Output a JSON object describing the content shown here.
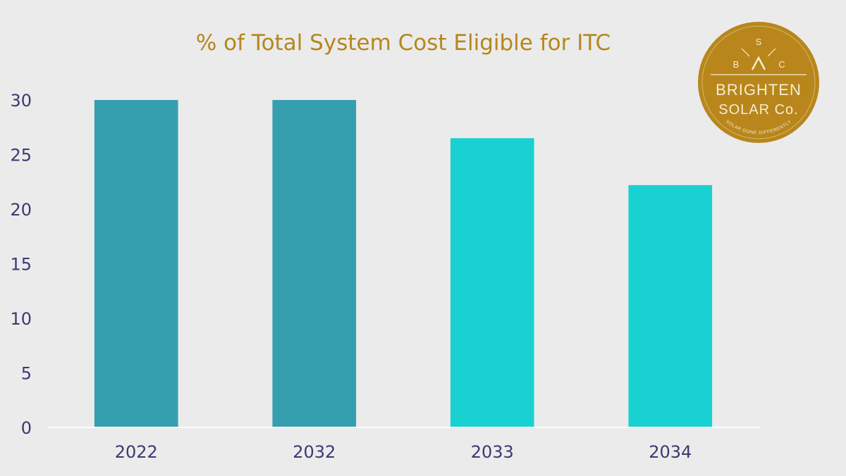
{
  "chart_data": {
    "type": "bar",
    "title": "% of Total System Cost Eligible for ITC",
    "categories": [
      "2022",
      "2032",
      "2033",
      "2034"
    ],
    "values": [
      30,
      30,
      26.5,
      22.2
    ],
    "xlabel": "",
    "ylabel": "",
    "ylim": [
      0,
      30
    ],
    "yticks": [
      0,
      5,
      10,
      15,
      20,
      25,
      30
    ],
    "grid": false,
    "legend": "none",
    "colors": [
      "#369faf",
      "#369faf",
      "#19d1d1",
      "#19d1d1"
    ]
  },
  "logo": {
    "letter_top": "S",
    "letter_left": "B",
    "letter_right": "C",
    "line1": "BRIGHTEN",
    "line2": "SOLAR Co.",
    "tagline": "SOLAR DONE DIFFERENTLY",
    "color": "#b8861b"
  },
  "colors": {
    "background": "#ebebeb",
    "title": "#b7861c",
    "axis_text": "#3a3a72",
    "axis_line": "#ffffff"
  }
}
